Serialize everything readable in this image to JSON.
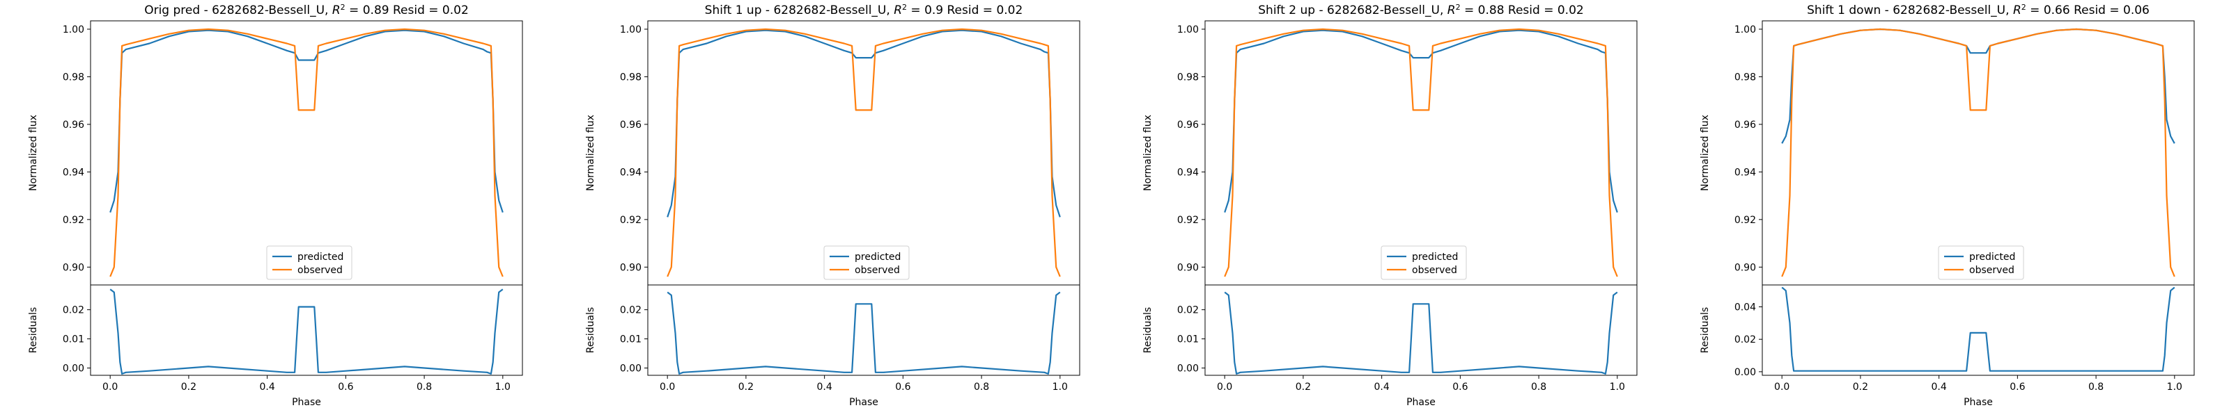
{
  "chart_data": [
    {
      "type": "line",
      "title_prefix": "Orig pred - 6282682-Bessell_U, ",
      "r2": "0.89",
      "resid": "0.02",
      "series": [
        {
          "name": "predicted",
          "color": "#1f77b4",
          "x": [
            0.0,
            0.01,
            0.02,
            0.025,
            0.03,
            0.04,
            0.1,
            0.15,
            0.2,
            0.25,
            0.3,
            0.35,
            0.4,
            0.45,
            0.47,
            0.48,
            0.52,
            0.53,
            0.55,
            0.6,
            0.65,
            0.7,
            0.75,
            0.8,
            0.85,
            0.9,
            0.95,
            0.96,
            0.97,
            0.975,
            0.98,
            0.99,
            1.0
          ],
          "y": [
            0.923,
            0.928,
            0.94,
            0.97,
            0.99,
            0.9915,
            0.994,
            0.997,
            0.999,
            0.9995,
            0.999,
            0.997,
            0.994,
            0.991,
            0.99,
            0.987,
            0.987,
            0.99,
            0.991,
            0.994,
            0.997,
            0.999,
            0.9995,
            0.999,
            0.997,
            0.994,
            0.9915,
            0.9905,
            0.99,
            0.97,
            0.94,
            0.928,
            0.923
          ]
        },
        {
          "name": "observed",
          "color": "#ff7f0e",
          "x": [
            0.0,
            0.01,
            0.02,
            0.025,
            0.03,
            0.04,
            0.1,
            0.15,
            0.2,
            0.25,
            0.3,
            0.35,
            0.4,
            0.45,
            0.47,
            0.48,
            0.52,
            0.53,
            0.55,
            0.6,
            0.65,
            0.7,
            0.75,
            0.8,
            0.85,
            0.9,
            0.95,
            0.96,
            0.97,
            0.975,
            0.98,
            0.99,
            1.0
          ],
          "y": [
            0.896,
            0.9,
            0.93,
            0.97,
            0.993,
            0.9935,
            0.996,
            0.998,
            0.9995,
            1.0,
            0.9995,
            0.998,
            0.996,
            0.994,
            0.993,
            0.966,
            0.966,
            0.993,
            0.994,
            0.996,
            0.998,
            0.9995,
            1.0,
            0.9995,
            0.998,
            0.996,
            0.994,
            0.9935,
            0.993,
            0.97,
            0.93,
            0.9,
            0.896
          ]
        }
      ],
      "ylabel": "Normalized flux",
      "ylim": [
        0.8925,
        1.0035
      ],
      "yticks": [
        "0.90",
        "0.92",
        "0.94",
        "0.96",
        "0.98",
        "1.00"
      ],
      "legend_placement": "lower center",
      "residuals": {
        "ylabel": "Residuals",
        "xlabel": "Phase",
        "ylim": [
          -0.0025,
          0.0285
        ],
        "yticks": [
          "0.00",
          "0.01",
          "0.02"
        ],
        "x": [
          0.0,
          0.01,
          0.02,
          0.025,
          0.03,
          0.04,
          0.1,
          0.2,
          0.25,
          0.3,
          0.4,
          0.45,
          0.47,
          0.475,
          0.48,
          0.52,
          0.525,
          0.53,
          0.55,
          0.6,
          0.7,
          0.75,
          0.8,
          0.9,
          0.96,
          0.97,
          0.975,
          0.98,
          0.99,
          1.0
        ],
        "y": [
          0.027,
          0.026,
          0.012,
          0.002,
          -0.002,
          -0.0015,
          -0.001,
          0.0,
          0.0005,
          0.0,
          -0.001,
          -0.0015,
          -0.0015,
          0.01,
          0.021,
          0.021,
          0.01,
          -0.0015,
          -0.0015,
          -0.001,
          0.0,
          0.0005,
          0.0,
          -0.001,
          -0.0015,
          -0.002,
          0.002,
          0.012,
          0.026,
          0.027
        ]
      },
      "xlim": [
        -0.05,
        1.05
      ],
      "xticks": [
        "0.0",
        "0.2",
        "0.4",
        "0.6",
        "0.8",
        "1.0"
      ]
    },
    {
      "type": "line",
      "title_prefix": "Shift 1 up - 6282682-Bessell_U, ",
      "r2": "0.9",
      "resid": "0.02",
      "series": [
        {
          "name": "predicted",
          "color": "#1f77b4",
          "x": [
            0.0,
            0.01,
            0.02,
            0.025,
            0.03,
            0.04,
            0.1,
            0.15,
            0.2,
            0.25,
            0.3,
            0.35,
            0.4,
            0.45,
            0.47,
            0.48,
            0.52,
            0.53,
            0.55,
            0.6,
            0.65,
            0.7,
            0.75,
            0.8,
            0.85,
            0.9,
            0.95,
            0.96,
            0.97,
            0.975,
            0.98,
            0.99,
            1.0
          ],
          "y": [
            0.921,
            0.926,
            0.938,
            0.97,
            0.99,
            0.9915,
            0.994,
            0.997,
            0.999,
            0.9995,
            0.999,
            0.997,
            0.994,
            0.991,
            0.99,
            0.988,
            0.988,
            0.99,
            0.991,
            0.994,
            0.997,
            0.999,
            0.9995,
            0.999,
            0.997,
            0.994,
            0.9915,
            0.9905,
            0.99,
            0.97,
            0.938,
            0.926,
            0.921
          ]
        },
        {
          "name": "observed",
          "color": "#ff7f0e",
          "x": [
            0.0,
            0.01,
            0.02,
            0.025,
            0.03,
            0.04,
            0.1,
            0.15,
            0.2,
            0.25,
            0.3,
            0.35,
            0.4,
            0.45,
            0.47,
            0.48,
            0.52,
            0.53,
            0.55,
            0.6,
            0.65,
            0.7,
            0.75,
            0.8,
            0.85,
            0.9,
            0.95,
            0.96,
            0.97,
            0.975,
            0.98,
            0.99,
            1.0
          ],
          "y": [
            0.896,
            0.9,
            0.93,
            0.97,
            0.993,
            0.9935,
            0.996,
            0.998,
            0.9995,
            1.0,
            0.9995,
            0.998,
            0.996,
            0.994,
            0.993,
            0.966,
            0.966,
            0.993,
            0.994,
            0.996,
            0.998,
            0.9995,
            1.0,
            0.9995,
            0.998,
            0.996,
            0.994,
            0.9935,
            0.993,
            0.97,
            0.93,
            0.9,
            0.896
          ]
        }
      ],
      "ylabel": "Normalized flux",
      "ylim": [
        0.8925,
        1.0035
      ],
      "yticks": [
        "0.90",
        "0.92",
        "0.94",
        "0.96",
        "0.98",
        "1.00"
      ],
      "legend_placement": "lower center",
      "residuals": {
        "ylabel": "Residuals",
        "xlabel": "Phase",
        "ylim": [
          -0.0025,
          0.0285
        ],
        "yticks": [
          "0.00",
          "0.01",
          "0.02"
        ],
        "x": [
          0.0,
          0.01,
          0.02,
          0.025,
          0.03,
          0.04,
          0.1,
          0.2,
          0.25,
          0.3,
          0.4,
          0.45,
          0.47,
          0.475,
          0.48,
          0.52,
          0.525,
          0.53,
          0.55,
          0.6,
          0.7,
          0.75,
          0.8,
          0.9,
          0.96,
          0.97,
          0.975,
          0.98,
          0.99,
          1.0
        ],
        "y": [
          0.026,
          0.025,
          0.012,
          0.002,
          -0.002,
          -0.0015,
          -0.001,
          0.0,
          0.0005,
          0.0,
          -0.001,
          -0.0015,
          -0.0015,
          0.01,
          0.022,
          0.022,
          0.01,
          -0.0015,
          -0.0015,
          -0.001,
          0.0,
          0.0005,
          0.0,
          -0.001,
          -0.0015,
          -0.002,
          0.002,
          0.012,
          0.025,
          0.026
        ]
      },
      "xlim": [
        -0.05,
        1.05
      ],
      "xticks": [
        "0.0",
        "0.2",
        "0.4",
        "0.6",
        "0.8",
        "1.0"
      ]
    },
    {
      "type": "line",
      "title_prefix": "Shift 2 up - 6282682-Bessell_U, ",
      "r2": "0.88",
      "resid": "0.02",
      "series": [
        {
          "name": "predicted",
          "color": "#1f77b4",
          "x": [
            0.0,
            0.01,
            0.02,
            0.025,
            0.03,
            0.04,
            0.1,
            0.15,
            0.2,
            0.25,
            0.3,
            0.35,
            0.4,
            0.45,
            0.47,
            0.48,
            0.52,
            0.53,
            0.55,
            0.6,
            0.65,
            0.7,
            0.75,
            0.8,
            0.85,
            0.9,
            0.95,
            0.96,
            0.97,
            0.975,
            0.98,
            0.99,
            1.0
          ],
          "y": [
            0.923,
            0.928,
            0.94,
            0.97,
            0.99,
            0.9915,
            0.994,
            0.997,
            0.999,
            0.9995,
            0.999,
            0.997,
            0.994,
            0.991,
            0.99,
            0.988,
            0.988,
            0.99,
            0.991,
            0.994,
            0.997,
            0.999,
            0.9995,
            0.999,
            0.997,
            0.994,
            0.9915,
            0.9905,
            0.99,
            0.97,
            0.94,
            0.928,
            0.923
          ]
        },
        {
          "name": "observed",
          "color": "#ff7f0e",
          "x": [
            0.0,
            0.01,
            0.02,
            0.025,
            0.03,
            0.04,
            0.1,
            0.15,
            0.2,
            0.25,
            0.3,
            0.35,
            0.4,
            0.45,
            0.47,
            0.48,
            0.52,
            0.53,
            0.55,
            0.6,
            0.65,
            0.7,
            0.75,
            0.8,
            0.85,
            0.9,
            0.95,
            0.96,
            0.97,
            0.975,
            0.98,
            0.99,
            1.0
          ],
          "y": [
            0.896,
            0.9,
            0.93,
            0.97,
            0.993,
            0.9935,
            0.996,
            0.998,
            0.9995,
            1.0,
            0.9995,
            0.998,
            0.996,
            0.994,
            0.993,
            0.966,
            0.966,
            0.993,
            0.994,
            0.996,
            0.998,
            0.9995,
            1.0,
            0.9995,
            0.998,
            0.996,
            0.994,
            0.9935,
            0.993,
            0.97,
            0.93,
            0.9,
            0.896
          ]
        }
      ],
      "ylabel": "Normalized flux",
      "ylim": [
        0.8925,
        1.0035
      ],
      "yticks": [
        "0.90",
        "0.92",
        "0.94",
        "0.96",
        "0.98",
        "1.00"
      ],
      "legend_placement": "lower center",
      "residuals": {
        "ylabel": "Residuals",
        "xlabel": "Phase",
        "ylim": [
          -0.0025,
          0.0285
        ],
        "yticks": [
          "0.00",
          "0.01",
          "0.02"
        ],
        "x": [
          0.0,
          0.01,
          0.02,
          0.025,
          0.03,
          0.04,
          0.1,
          0.2,
          0.25,
          0.3,
          0.4,
          0.45,
          0.47,
          0.475,
          0.48,
          0.52,
          0.525,
          0.53,
          0.55,
          0.6,
          0.7,
          0.75,
          0.8,
          0.9,
          0.96,
          0.97,
          0.975,
          0.98,
          0.99,
          1.0
        ],
        "y": [
          0.026,
          0.025,
          0.012,
          0.002,
          -0.002,
          -0.0015,
          -0.001,
          0.0,
          0.0005,
          0.0,
          -0.001,
          -0.0015,
          -0.0015,
          0.01,
          0.022,
          0.022,
          0.01,
          -0.0015,
          -0.0015,
          -0.001,
          0.0,
          0.0005,
          0.0,
          -0.001,
          -0.0015,
          -0.002,
          0.002,
          0.012,
          0.025,
          0.026
        ]
      },
      "xlim": [
        -0.05,
        1.05
      ],
      "xticks": [
        "0.0",
        "0.2",
        "0.4",
        "0.6",
        "0.8",
        "1.0"
      ]
    },
    {
      "type": "line",
      "title_prefix": "Shift 1 down - 6282682-Bessell_U, ",
      "r2": "0.66",
      "resid": "0.06",
      "series": [
        {
          "name": "predicted",
          "color": "#1f77b4",
          "x": [
            0.0,
            0.01,
            0.02,
            0.025,
            0.03,
            0.04,
            0.1,
            0.15,
            0.2,
            0.25,
            0.3,
            0.35,
            0.4,
            0.45,
            0.47,
            0.48,
            0.52,
            0.53,
            0.55,
            0.6,
            0.65,
            0.7,
            0.75,
            0.8,
            0.85,
            0.9,
            0.95,
            0.96,
            0.97,
            0.975,
            0.98,
            0.99,
            1.0
          ],
          "y": [
            0.952,
            0.955,
            0.962,
            0.98,
            0.993,
            0.9935,
            0.996,
            0.998,
            0.9995,
            1.0,
            0.9995,
            0.998,
            0.996,
            0.994,
            0.993,
            0.99,
            0.99,
            0.993,
            0.994,
            0.996,
            0.998,
            0.9995,
            1.0,
            0.9995,
            0.998,
            0.996,
            0.994,
            0.9935,
            0.993,
            0.98,
            0.962,
            0.955,
            0.952
          ]
        },
        {
          "name": "observed",
          "color": "#ff7f0e",
          "x": [
            0.0,
            0.01,
            0.02,
            0.025,
            0.03,
            0.04,
            0.1,
            0.15,
            0.2,
            0.25,
            0.3,
            0.35,
            0.4,
            0.45,
            0.47,
            0.48,
            0.52,
            0.53,
            0.55,
            0.6,
            0.65,
            0.7,
            0.75,
            0.8,
            0.85,
            0.9,
            0.95,
            0.96,
            0.97,
            0.975,
            0.98,
            0.99,
            1.0
          ],
          "y": [
            0.896,
            0.9,
            0.93,
            0.97,
            0.993,
            0.9935,
            0.996,
            0.998,
            0.9995,
            1.0,
            0.9995,
            0.998,
            0.996,
            0.994,
            0.993,
            0.966,
            0.966,
            0.993,
            0.994,
            0.996,
            0.998,
            0.9995,
            1.0,
            0.9995,
            0.998,
            0.996,
            0.994,
            0.9935,
            0.993,
            0.97,
            0.93,
            0.9,
            0.896
          ]
        }
      ],
      "ylabel": "Normalized flux",
      "ylim": [
        0.8925,
        1.0035
      ],
      "yticks": [
        "0.90",
        "0.92",
        "0.94",
        "0.96",
        "0.98",
        "1.00"
      ],
      "legend_placement": "lower center",
      "residuals": {
        "ylabel": "Residuals",
        "xlabel": "Phase",
        "ylim": [
          -0.0022,
          0.0535
        ],
        "yticks": [
          "0.00",
          "0.02",
          "0.04"
        ],
        "x": [
          0.0,
          0.01,
          0.02,
          0.025,
          0.03,
          0.04,
          0.1,
          0.2,
          0.3,
          0.4,
          0.47,
          0.475,
          0.48,
          0.52,
          0.525,
          0.53,
          0.6,
          0.7,
          0.8,
          0.9,
          0.96,
          0.97,
          0.975,
          0.98,
          0.99,
          1.0
        ],
        "y": [
          0.052,
          0.05,
          0.03,
          0.01,
          0.0005,
          0.0005,
          0.0005,
          0.0005,
          0.0005,
          0.0005,
          0.0005,
          0.012,
          0.024,
          0.024,
          0.012,
          0.0005,
          0.0005,
          0.0005,
          0.0005,
          0.0005,
          0.0005,
          0.0005,
          0.01,
          0.03,
          0.05,
          0.052
        ]
      },
      "xlim": [
        -0.05,
        1.05
      ],
      "xticks": [
        "0.0",
        "0.2",
        "0.4",
        "0.6",
        "0.8",
        "1.0"
      ]
    }
  ]
}
